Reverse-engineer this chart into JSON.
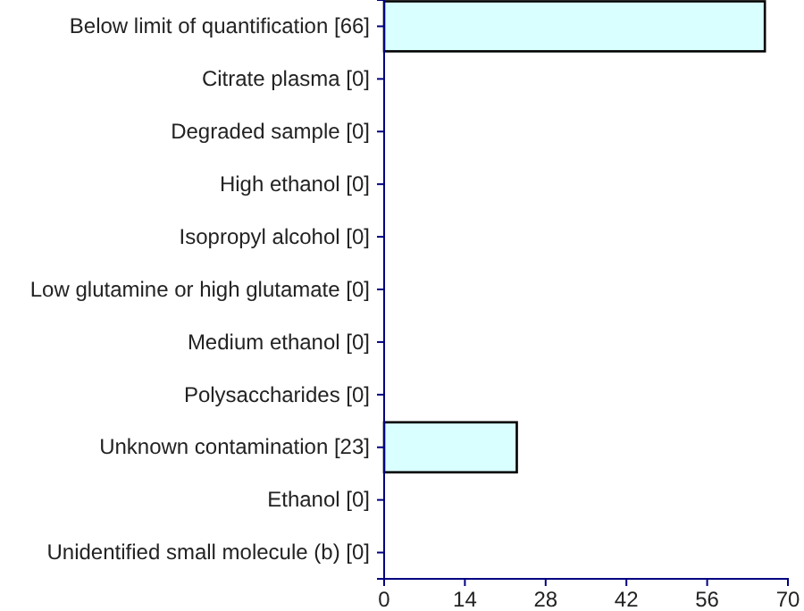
{
  "chart_data": {
    "type": "bar",
    "orientation": "horizontal",
    "categories": [
      "Below limit of quantification [66]",
      "Citrate plasma [0]",
      "Degraded sample [0]",
      "High ethanol [0]",
      "Isopropyl alcohol [0]",
      "Low glutamine or high glutamate [0]",
      "Medium ethanol [0]",
      "Polysaccharides [0]",
      "Unknown contamination [23]",
      "Ethanol [0]",
      "Unidentified small molecule (b) [0]"
    ],
    "values": [
      66,
      0,
      0,
      0,
      0,
      0,
      0,
      0,
      23,
      0,
      0
    ],
    "color": "#d9ffff",
    "xlim": [
      0,
      70
    ],
    "xticks": [
      0,
      14,
      28,
      42,
      56,
      70
    ],
    "grid": false
  }
}
